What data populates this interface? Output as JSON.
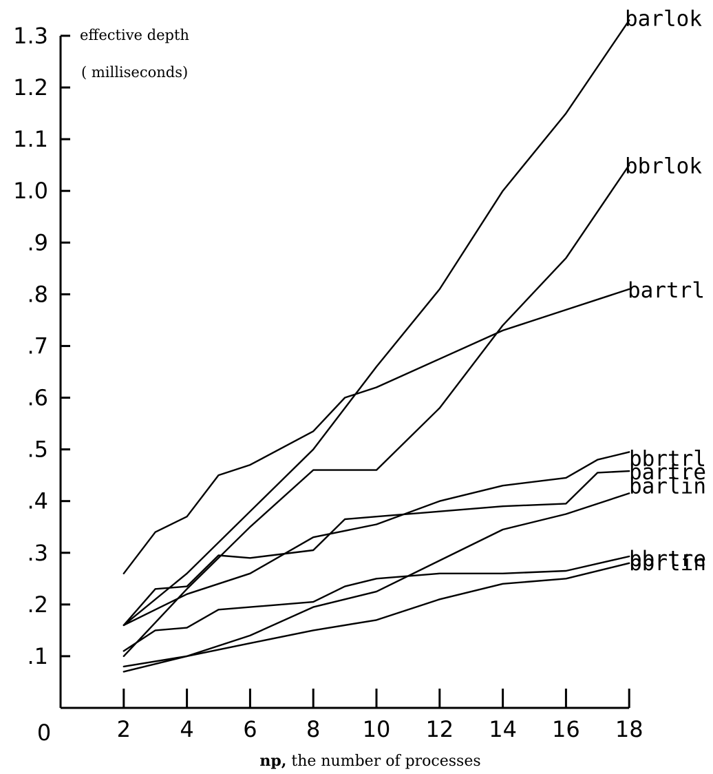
{
  "chart_data": {
    "type": "line",
    "title": "",
    "ylabel": "effective depth",
    "ylabel_unit": "( milliseconds)",
    "xlabel_bold": "np,",
    "xlabel_rest": " the number of processes",
    "xlim": [
      0,
      18
    ],
    "ylim": [
      0,
      1.3
    ],
    "x_ticks": [
      2,
      4,
      6,
      8,
      10,
      12,
      14,
      16,
      18
    ],
    "x_tick_labels": [
      "2",
      "4",
      "6",
      "8",
      "10",
      "12",
      "14",
      "16",
      "18"
    ],
    "origin_label": "0",
    "y_ticks": [
      0.1,
      0.2,
      0.3,
      0.4,
      0.5,
      0.6,
      0.7,
      0.8,
      0.9,
      1.0,
      1.1,
      1.2,
      1.3
    ],
    "y_tick_labels": [
      ".1",
      ".2",
      ".3",
      ".4",
      ".5",
      ".6",
      ".7",
      ".8",
      ".9",
      "1.0",
      "1.1",
      "1.2",
      "1.3"
    ],
    "grid": false,
    "legend": "labels at line ends (right)",
    "series": [
      {
        "name": "barlok",
        "x": [
          2,
          4,
          6,
          8,
          10,
          12,
          14,
          16,
          18
        ],
        "y": [
          0.16,
          0.26,
          0.38,
          0.5,
          0.66,
          0.81,
          1.0,
          1.15,
          1.33
        ]
      },
      {
        "name": "bbrlok",
        "x": [
          2,
          4,
          6,
          8,
          10,
          12,
          14,
          16,
          18
        ],
        "y": [
          0.1,
          0.23,
          0.35,
          0.46,
          0.46,
          0.58,
          0.74,
          0.87,
          1.05
        ]
      },
      {
        "name": "bartrl",
        "x": [
          2,
          3,
          4,
          5,
          6,
          8,
          9,
          10,
          12,
          14,
          16,
          18
        ],
        "y": [
          0.26,
          0.34,
          0.37,
          0.45,
          0.47,
          0.535,
          0.6,
          0.62,
          0.675,
          0.73,
          0.77,
          0.81
        ]
      },
      {
        "name": "bbrtrl",
        "x": [
          2,
          4,
          6,
          8,
          10,
          12,
          14,
          16,
          17,
          18
        ],
        "y": [
          0.16,
          0.22,
          0.26,
          0.33,
          0.355,
          0.4,
          0.43,
          0.445,
          0.48,
          0.495
        ]
      },
      {
        "name": "bartre",
        "x": [
          2,
          3,
          4,
          5,
          6,
          8,
          9,
          10,
          12,
          14,
          16,
          17,
          18
        ],
        "y": [
          0.16,
          0.23,
          0.235,
          0.295,
          0.29,
          0.305,
          0.365,
          0.37,
          0.38,
          0.39,
          0.395,
          0.455,
          0.458
        ]
      },
      {
        "name": "barlin",
        "x": [
          2,
          4,
          6,
          8,
          10,
          12,
          14,
          16,
          18
        ],
        "y": [
          0.07,
          0.1,
          0.14,
          0.195,
          0.225,
          0.285,
          0.345,
          0.375,
          0.415
        ]
      },
      {
        "name": "bbrtre",
        "x": [
          2,
          3,
          4,
          5,
          6,
          8,
          9,
          10,
          12,
          14,
          16,
          18
        ],
        "y": [
          0.11,
          0.15,
          0.155,
          0.19,
          0.195,
          0.205,
          0.235,
          0.25,
          0.26,
          0.26,
          0.265,
          0.293
        ]
      },
      {
        "name": "bbrlin",
        "x": [
          2,
          4,
          6,
          8,
          10,
          12,
          14,
          16,
          18
        ],
        "y": [
          0.08,
          0.1,
          0.125,
          0.15,
          0.17,
          0.21,
          0.24,
          0.25,
          0.28
        ]
      }
    ]
  }
}
